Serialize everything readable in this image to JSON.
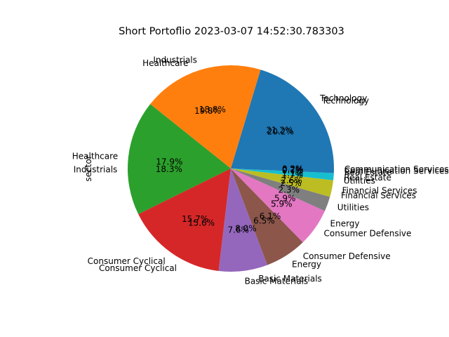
{
  "chart_data": {
    "type": "pie",
    "title": "Short Portoflio 2023-03-07 14:52:30.783303",
    "ylabel": "sector",
    "slices": [
      {
        "label": "Technology",
        "percent_label": "20.2%",
        "value": 20.2,
        "color": "#1f77b4"
      },
      {
        "label": "Industrials",
        "percent_label": "18.8%",
        "value": 18.8,
        "color": "#ff7f0e"
      },
      {
        "label": "Healthcare",
        "percent_label": "17.9%",
        "value": 17.9,
        "color": "#2ca02c"
      },
      {
        "label": "Consumer Cyclical",
        "percent_label": "15.7%",
        "value": 15.7,
        "color": "#d62728"
      },
      {
        "label": "Basic Materials",
        "percent_label": "7.6%",
        "value": 7.6,
        "color": "#9467bd"
      },
      {
        "label": "Energy",
        "percent_label": "6.5%",
        "value": 6.5,
        "color": "#8c564b"
      },
      {
        "label": "Consumer Defensive",
        "percent_label": "5.9%",
        "value": 5.9,
        "color": "#e377c2"
      },
      {
        "label": "Utilities",
        "percent_label": "2.3%",
        "value": 2.3,
        "color": "#7f7f7f"
      },
      {
        "label": "Financial Services",
        "percent_label": "2.6%",
        "value": 2.6,
        "color": "#bcbd22"
      },
      {
        "label": "Real Estate",
        "percent_label": "1.1%",
        "value": 1.1,
        "color": "#17becf"
      },
      {
        "label": "Communication Services",
        "percent_label": "0.7%",
        "value": 0.7,
        "color": "#1f77b4"
      }
    ],
    "ghost_slices": [
      {
        "label": "Technology",
        "percent_label": "21.2%",
        "value": 21.2
      },
      {
        "label": "Healthcare",
        "percent_label": "19.8%",
        "value": 19.8
      },
      {
        "label": "Industrials",
        "percent_label": "18.3%",
        "value": 18.3
      },
      {
        "label": "Consumer Cyclical",
        "percent_label": "15.6%",
        "value": 15.6
      },
      {
        "label": "Basic Materials",
        "percent_label": "8.0%",
        "value": 8.0
      },
      {
        "label": "Consumer Defensive",
        "percent_label": "6.1%",
        "value": 6.1
      },
      {
        "label": "Energy",
        "percent_label": "5.9%",
        "value": 5.9
      },
      {
        "label": "Financial Services",
        "percent_label": "2.5%",
        "value": 2.5
      },
      {
        "label": "Utilities",
        "percent_label": "1.7%",
        "value": 1.7
      },
      {
        "label": "Real Estate",
        "percent_label": "0.7%",
        "value": 0.7
      },
      {
        "label": "Communication Services",
        "percent_label": "0.2%",
        "value": 0.2
      }
    ],
    "legend": "none"
  }
}
